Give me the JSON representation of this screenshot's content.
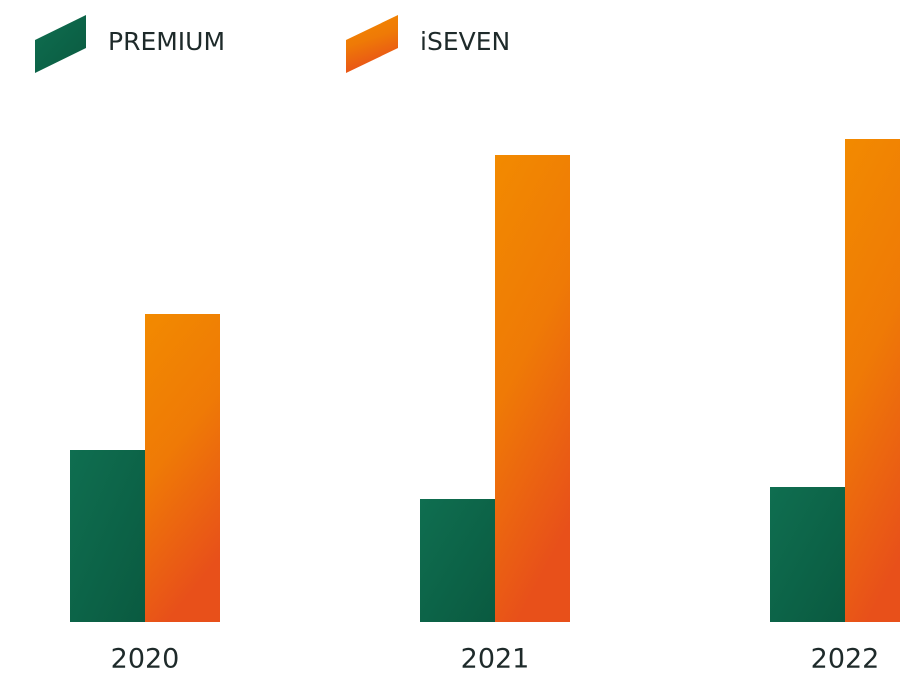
{
  "chart_data": {
    "type": "bar",
    "categories": [
      "2020",
      "2021",
      "2022"
    ],
    "series": [
      {
        "name": "PREMIUM",
        "color": "#0d6549",
        "values": [
          172,
          123,
          135
        ]
      },
      {
        "name": "iSEVEN",
        "color": "#f08400",
        "values": [
          308,
          467,
          483
        ]
      }
    ],
    "ylim": [
      0,
      500
    ]
  }
}
